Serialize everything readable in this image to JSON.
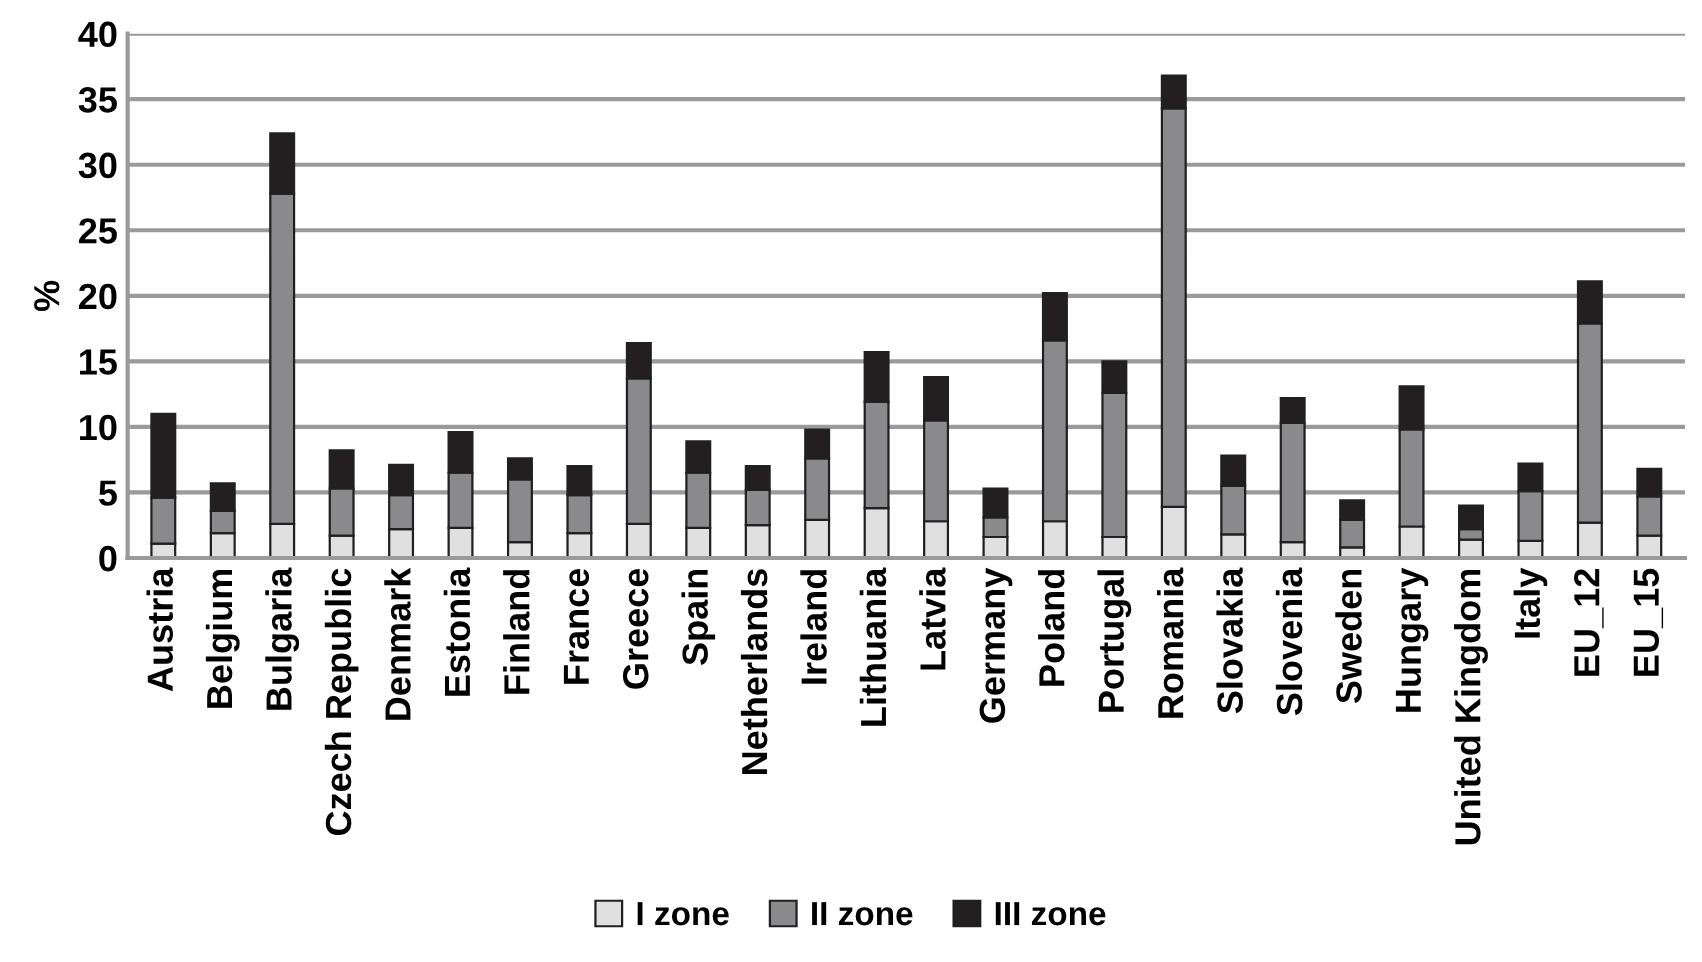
{
  "chart_data": {
    "type": "bar",
    "stacked": true,
    "ylabel": "%",
    "categories": [
      "Austria",
      "Belgium",
      "Bulgaria",
      "Czech Republic",
      "Denmark",
      "Estonia",
      "Finland",
      "France",
      "Greece",
      "Spain",
      "Netherlands",
      "Ireland",
      "Lithuania",
      "Latvia",
      "Germany",
      "Poland",
      "Portugal",
      "Romania",
      "Slovakia",
      "Slovenia",
      "Sweden",
      "Hungary",
      "United Kingdom",
      "Italy",
      "EU_12",
      "EU_15"
    ],
    "series": [
      {
        "name": "I zone",
        "color": "#e0e0e0",
        "values": [
          1.1,
          1.9,
          2.6,
          1.7,
          2.2,
          2.3,
          1.2,
          1.9,
          2.6,
          2.3,
          2.5,
          2.9,
          3.8,
          2.8,
          1.6,
          2.8,
          1.6,
          3.9,
          1.8,
          1.2,
          0.8,
          2.4,
          1.4,
          1.3,
          2.7,
          1.7
        ]
      },
      {
        "name": "II zone",
        "color": "#8a8a8c",
        "values": [
          3.5,
          1.7,
          25.2,
          3.6,
          2.6,
          4.2,
          4.8,
          2.9,
          11.1,
          4.2,
          2.7,
          4.7,
          8.1,
          7.7,
          1.5,
          13.8,
          11.0,
          30.4,
          3.7,
          9.1,
          2.1,
          7.4,
          0.8,
          3.8,
          15.2,
          3.0
        ]
      },
      {
        "name": "III zone",
        "color": "#231f20",
        "values": [
          6.4,
          2.1,
          4.6,
          2.9,
          2.3,
          3.1,
          1.6,
          2.2,
          2.7,
          2.4,
          1.8,
          2.2,
          3.8,
          3.3,
          2.2,
          3.6,
          2.4,
          2.5,
          2.3,
          1.9,
          1.5,
          3.3,
          1.8,
          2.1,
          3.2,
          2.1
        ]
      }
    ],
    "ylim": [
      0,
      40
    ],
    "yticks": [
      0,
      5,
      10,
      15,
      20,
      25,
      30,
      35,
      40
    ],
    "grid": "y",
    "legend": "bottom"
  }
}
